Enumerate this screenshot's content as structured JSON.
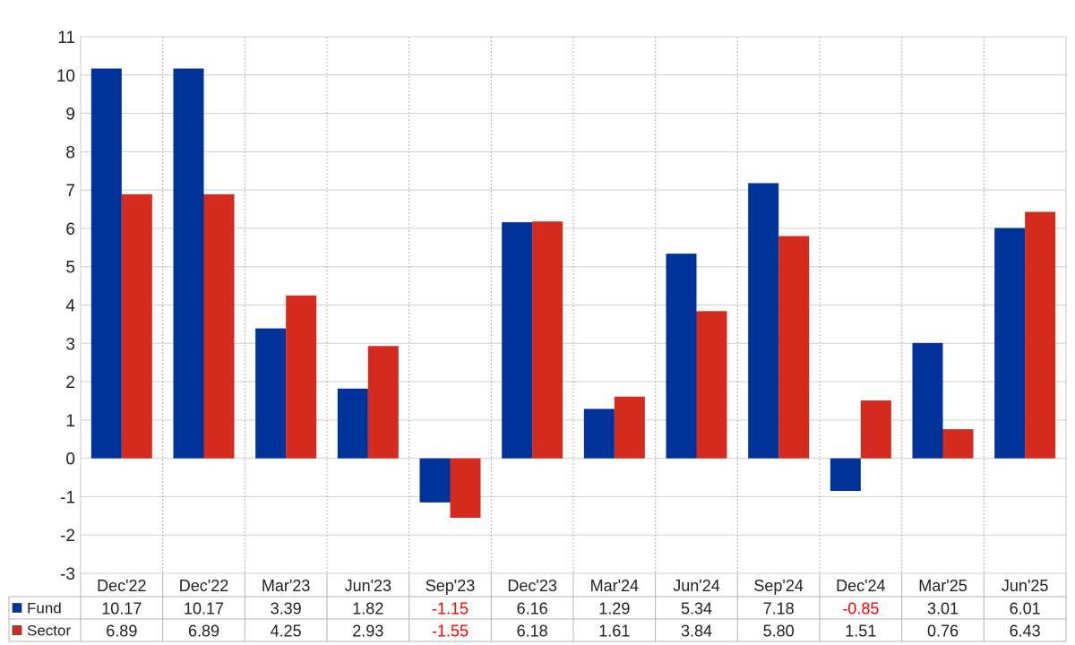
{
  "chart_data": {
    "type": "bar",
    "categories": [
      "Dec'22",
      "Dec'22",
      "Mar'23",
      "Jun'23",
      "Sep'23",
      "Dec'23",
      "Mar'24",
      "Jun'24",
      "Sep'24",
      "Dec'24",
      "Mar'25",
      "Jun'25"
    ],
    "series": [
      {
        "name": "Fund",
        "color": "#003399",
        "values": [
          10.17,
          10.17,
          3.39,
          1.82,
          -1.15,
          6.16,
          1.29,
          5.34,
          7.18,
          -0.85,
          3.01,
          6.01
        ],
        "labels": [
          "10.17",
          "10.17",
          "3.39",
          "1.82",
          "-1.15",
          "6.16",
          "1.29",
          "5.34",
          "7.18",
          "-0.85",
          "3.01",
          "6.01"
        ]
      },
      {
        "name": "Sector",
        "color": "#d52b1e",
        "values": [
          6.89,
          6.89,
          4.25,
          2.93,
          -1.55,
          6.18,
          1.61,
          3.84,
          5.8,
          1.51,
          0.76,
          6.43
        ],
        "labels": [
          "6.89",
          "6.89",
          "4.25",
          "2.93",
          "-1.55",
          "6.18",
          "1.61",
          "3.84",
          "5.80",
          "1.51",
          "0.76",
          "6.43"
        ]
      }
    ],
    "ylim": [
      -3,
      11
    ],
    "yticks": [
      "-3",
      "-2",
      "-1",
      "0",
      "1",
      "2",
      "3",
      "4",
      "5",
      "6",
      "7",
      "8",
      "9",
      "10",
      "11"
    ],
    "negative_label_color": "#ff0000",
    "grid": true,
    "legend": "data-table-below"
  }
}
